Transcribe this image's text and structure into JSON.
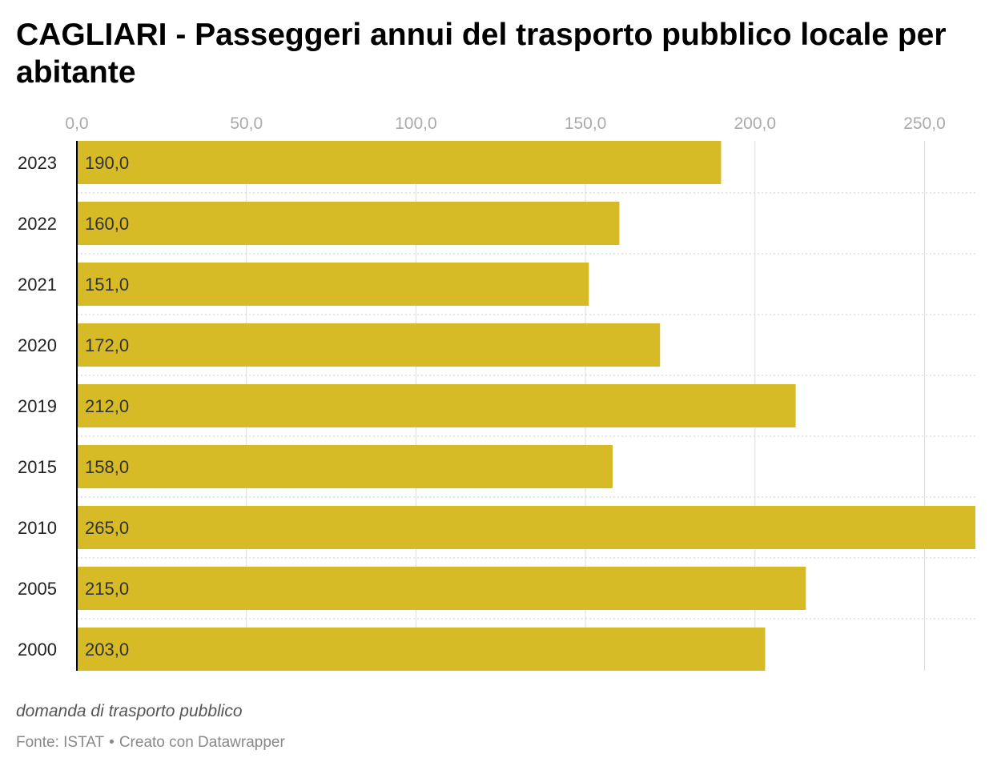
{
  "title": "CAGLIARI - Passeggeri annui del trasporto pubblico locale per abitante",
  "notes": "domanda di trasporto pubblico",
  "footer": {
    "source": "Fonte: ISTAT",
    "separator": "•",
    "credit": "Creato con Datawrapper"
  },
  "colors": {
    "bar": "#d6bb27",
    "grid": "#dddddd",
    "tick_text": "#aaaaaa",
    "label_text": "#333333",
    "axis_line": "#000000"
  },
  "chart_data": {
    "type": "bar",
    "orientation": "horizontal",
    "categories": [
      "2023",
      "2022",
      "2021",
      "2020",
      "2019",
      "2015",
      "2010",
      "2005",
      "2000"
    ],
    "values": [
      190.0,
      160.0,
      151.0,
      172.0,
      212.0,
      158.0,
      265.0,
      215.0,
      203.0
    ],
    "value_labels": [
      "190,0",
      "160,0",
      "151,0",
      "172,0",
      "212,0",
      "158,0",
      "265,0",
      "215,0",
      "203,0"
    ],
    "xlim": [
      0,
      265
    ],
    "x_ticks": [
      0,
      50,
      100,
      150,
      200,
      250
    ],
    "x_tick_labels": [
      "0,0",
      "50,0",
      "100,0",
      "150,0",
      "200,0",
      "250,0"
    ],
    "tick_position": "top",
    "grid": true
  }
}
